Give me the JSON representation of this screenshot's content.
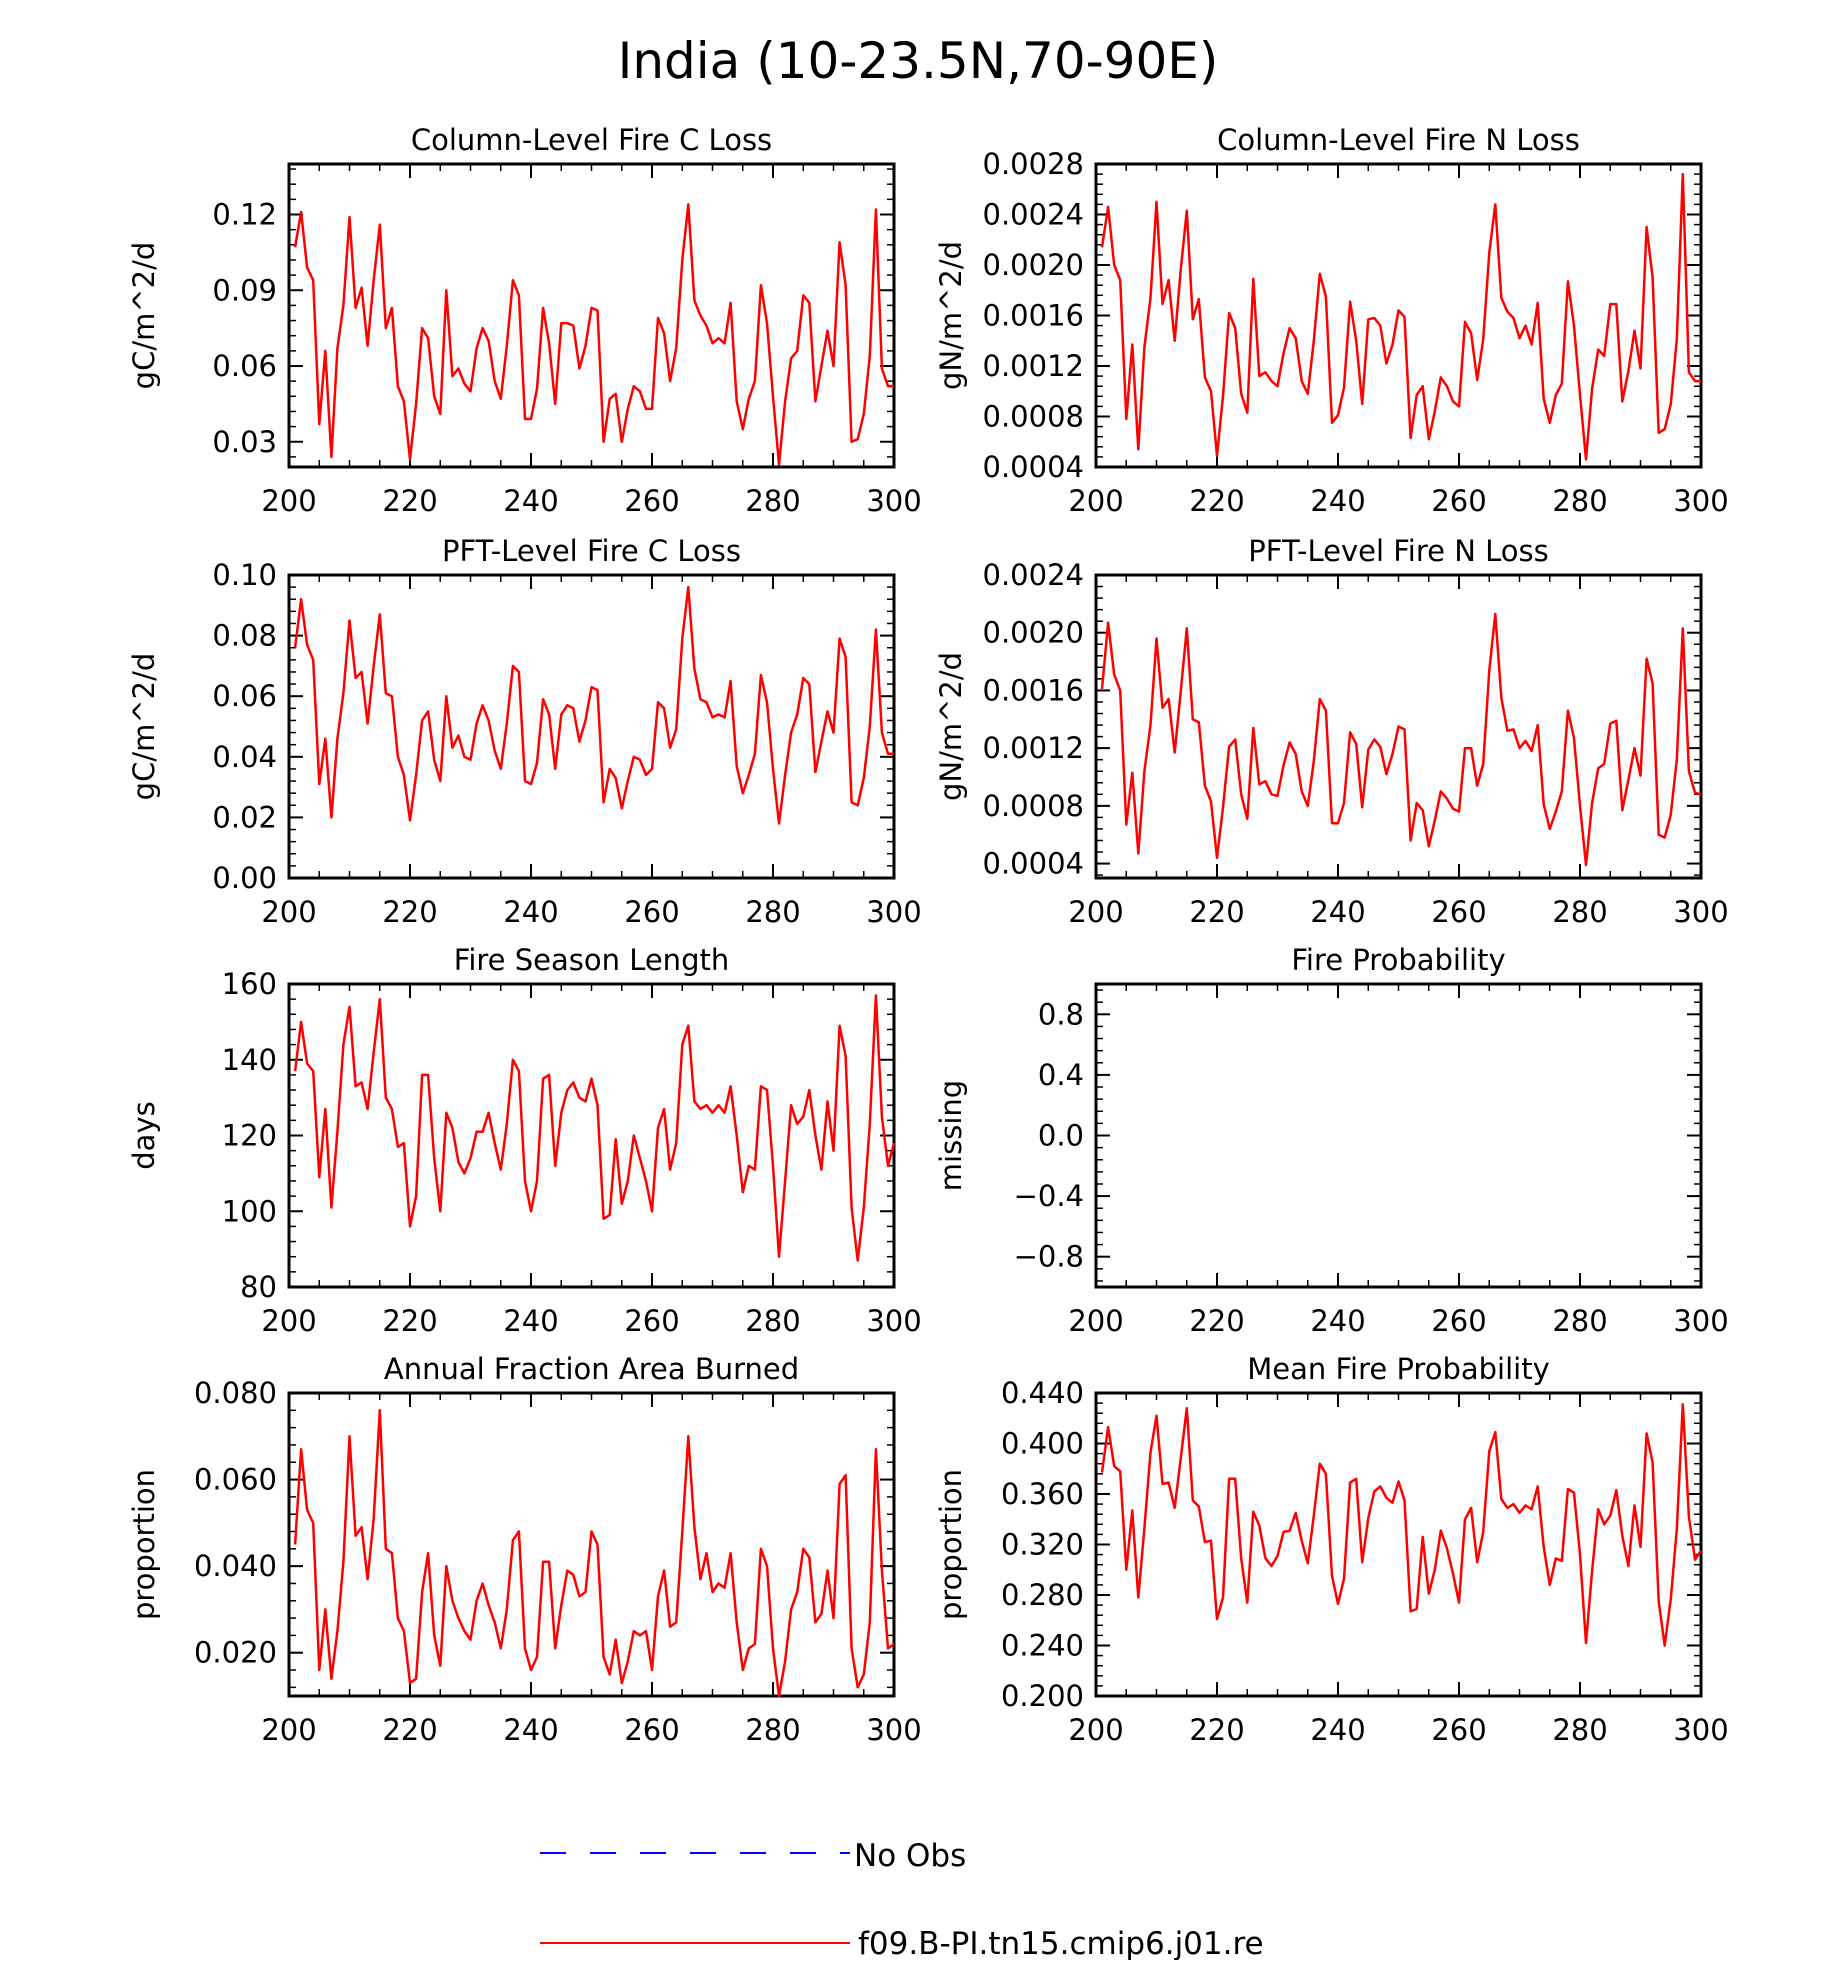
{
  "figure_title": "India (10-23.5N,70-90E)",
  "legend": [
    {
      "label": "No Obs",
      "color": "#0000ff",
      "style": "dashed"
    },
    {
      "label": "f09.B-PI.tn15.cmip6.j01.re",
      "color": "#ff0000",
      "style": "solid"
    }
  ],
  "chart_data": [
    {
      "type": "line",
      "title": "Column-Level Fire C Loss",
      "xlabel": "",
      "ylabel": "gC/m^2/d",
      "xlim": [
        200,
        300
      ],
      "ylim": [
        0.02,
        0.14
      ],
      "xticks": [
        200,
        220,
        240,
        260,
        280,
        300
      ],
      "yticks": [
        0.03,
        0.06,
        0.09,
        0.12
      ],
      "ytick_labels": [
        "0.03",
        "0.06",
        "0.09",
        "0.12"
      ],
      "x_start": 201,
      "series": [
        {
          "color": "#ff0000",
          "values": [
            0.107,
            0.121,
            0.099,
            0.094,
            0.037,
            0.066,
            0.024,
            0.067,
            0.084,
            0.119,
            0.083,
            0.091,
            0.068,
            0.094,
            0.116,
            0.075,
            0.083,
            0.052,
            0.046,
            0.023,
            0.045,
            0.075,
            0.071,
            0.048,
            0.041,
            0.09,
            0.056,
            0.059,
            0.053,
            0.05,
            0.067,
            0.075,
            0.07,
            0.054,
            0.047,
            0.068,
            0.094,
            0.088,
            0.039,
            0.039,
            0.051,
            0.083,
            0.069,
            0.045,
            0.077,
            0.077,
            0.076,
            0.059,
            0.068,
            0.083,
            0.082,
            0.03,
            0.047,
            0.049,
            0.03,
            0.043,
            0.052,
            0.05,
            0.043,
            0.043,
            0.079,
            0.073,
            0.054,
            0.067,
            0.102,
            0.124,
            0.086,
            0.08,
            0.076,
            0.069,
            0.071,
            0.069,
            0.085,
            0.046,
            0.035,
            0.047,
            0.054,
            0.092,
            0.077,
            0.048,
            0.021,
            0.046,
            0.063,
            0.066,
            0.088,
            0.085,
            0.046,
            0.06,
            0.074,
            0.06,
            0.109,
            0.092,
            0.03,
            0.031,
            0.041,
            0.064,
            0.122,
            0.059,
            0.052,
            0.052
          ]
        }
      ]
    },
    {
      "type": "line",
      "title": "Column-Level Fire N Loss",
      "xlabel": "",
      "ylabel": "gN/m^2/d",
      "xlim": [
        200,
        300
      ],
      "ylim": [
        0.0004,
        0.0028
      ],
      "xticks": [
        200,
        220,
        240,
        260,
        280,
        300
      ],
      "yticks": [
        0.0004,
        0.0008,
        0.0012,
        0.0016,
        0.002,
        0.0024,
        0.0028
      ],
      "ytick_labels": [
        "0.0004",
        "0.0008",
        "0.0012",
        "0.0016",
        "0.0020",
        "0.0024",
        "0.0028"
      ],
      "x_start": 201,
      "series": [
        {
          "color": "#ff0000",
          "values": [
            0.00214,
            0.00246,
            0.002,
            0.00188,
            0.00078,
            0.00137,
            0.00054,
            0.00135,
            0.00174,
            0.0025,
            0.00169,
            0.00188,
            0.0014,
            0.00196,
            0.00243,
            0.00157,
            0.00173,
            0.00111,
            0.001,
            0.00049,
            0.00096,
            0.00162,
            0.0015,
            0.00098,
            0.00083,
            0.00189,
            0.00112,
            0.00115,
            0.00108,
            0.00104,
            0.0013,
            0.0015,
            0.00142,
            0.00108,
            0.00098,
            0.0014,
            0.00193,
            0.00175,
            0.00075,
            0.00081,
            0.00103,
            0.00171,
            0.0014,
            0.0009,
            0.00157,
            0.00158,
            0.00152,
            0.00122,
            0.00137,
            0.00164,
            0.00159,
            0.00063,
            0.00097,
            0.00104,
            0.00062,
            0.00084,
            0.00111,
            0.00104,
            0.00092,
            0.00088,
            0.00155,
            0.00146,
            0.00109,
            0.00141,
            0.0021,
            0.00248,
            0.00174,
            0.00163,
            0.00158,
            0.00142,
            0.00152,
            0.00137,
            0.0017,
            0.00094,
            0.00075,
            0.00097,
            0.00106,
            0.00187,
            0.00152,
            0.00097,
            0.00046,
            0.00102,
            0.00133,
            0.00128,
            0.00169,
            0.00169,
            0.00092,
            0.00116,
            0.00148,
            0.00118,
            0.0023,
            0.0019,
            0.00067,
            0.0007,
            0.0009,
            0.00141,
            0.00272,
            0.00115,
            0.00108,
            0.00108
          ]
        }
      ]
    },
    {
      "type": "line",
      "title": "PFT-Level Fire C Loss",
      "xlabel": "",
      "ylabel": "gC/m^2/d",
      "xlim": [
        200,
        300
      ],
      "ylim": [
        0,
        0.1
      ],
      "xticks": [
        200,
        220,
        240,
        260,
        280,
        300
      ],
      "yticks": [
        0,
        0.02,
        0.04,
        0.06,
        0.08,
        0.1
      ],
      "ytick_labels": [
        "0.00",
        "0.02",
        "0.04",
        "0.06",
        "0.08",
        "0.10"
      ],
      "x_start": 201,
      "series": [
        {
          "color": "#ff0000",
          "values": [
            0.076,
            0.092,
            0.077,
            0.072,
            0.031,
            0.046,
            0.02,
            0.046,
            0.061,
            0.085,
            0.066,
            0.068,
            0.051,
            0.07,
            0.087,
            0.061,
            0.06,
            0.04,
            0.034,
            0.019,
            0.034,
            0.052,
            0.055,
            0.039,
            0.032,
            0.06,
            0.043,
            0.047,
            0.04,
            0.039,
            0.051,
            0.057,
            0.052,
            0.042,
            0.036,
            0.051,
            0.07,
            0.068,
            0.032,
            0.031,
            0.038,
            0.059,
            0.054,
            0.036,
            0.054,
            0.057,
            0.056,
            0.045,
            0.052,
            0.063,
            0.062,
            0.025,
            0.036,
            0.033,
            0.023,
            0.032,
            0.04,
            0.039,
            0.034,
            0.036,
            0.058,
            0.056,
            0.043,
            0.049,
            0.079,
            0.096,
            0.069,
            0.059,
            0.058,
            0.053,
            0.054,
            0.053,
            0.065,
            0.037,
            0.028,
            0.034,
            0.041,
            0.067,
            0.058,
            0.036,
            0.018,
            0.034,
            0.048,
            0.054,
            0.066,
            0.064,
            0.035,
            0.045,
            0.055,
            0.048,
            0.079,
            0.073,
            0.025,
            0.024,
            0.033,
            0.05,
            0.082,
            0.048,
            0.041,
            0.041
          ]
        }
      ]
    },
    {
      "type": "line",
      "title": "PFT-Level Fire N Loss",
      "xlabel": "",
      "ylabel": "gN/m^2/d",
      "xlim": [
        200,
        300
      ],
      "ylim": [
        0.0003,
        0.0024
      ],
      "xticks": [
        200,
        220,
        240,
        260,
        280,
        300
      ],
      "yticks": [
        0.0004,
        0.0008,
        0.0012,
        0.0016,
        0.002,
        0.0024
      ],
      "ytick_labels": [
        "0.0004",
        "0.0008",
        "0.0012",
        "0.0016",
        "0.0020",
        "0.0024"
      ],
      "x_start": 201,
      "series": [
        {
          "color": "#ff0000",
          "values": [
            0.00161,
            0.00207,
            0.00171,
            0.0016,
            0.00067,
            0.00103,
            0.00047,
            0.00104,
            0.00136,
            0.00196,
            0.00148,
            0.00154,
            0.00117,
            0.00159,
            0.00203,
            0.0014,
            0.00138,
            0.00094,
            0.00083,
            0.00044,
            0.00079,
            0.00121,
            0.00126,
            0.00088,
            0.00071,
            0.00134,
            0.00095,
            0.00097,
            0.00088,
            0.00087,
            0.00108,
            0.00124,
            0.00116,
            0.0009,
            0.0008,
            0.00111,
            0.00154,
            0.00146,
            0.00068,
            0.00068,
            0.00082,
            0.00131,
            0.00123,
            0.00079,
            0.00119,
            0.00126,
            0.00121,
            0.00102,
            0.00116,
            0.00135,
            0.00133,
            0.00056,
            0.00082,
            0.00077,
            0.00052,
            0.0007,
            0.0009,
            0.00085,
            0.00078,
            0.00076,
            0.0012,
            0.0012,
            0.00094,
            0.00109,
            0.00174,
            0.00213,
            0.00155,
            0.00132,
            0.00133,
            0.0012,
            0.00125,
            0.00118,
            0.00136,
            0.00081,
            0.00064,
            0.00076,
            0.0009,
            0.00146,
            0.00127,
            0.0008,
            0.00039,
            0.00082,
            0.00106,
            0.00109,
            0.00137,
            0.00139,
            0.00077,
            0.00098,
            0.0012,
            0.00101,
            0.00182,
            0.00165,
            0.0006,
            0.00058,
            0.00074,
            0.00112,
            0.00203,
            0.00104,
            0.00089,
            0.00088
          ]
        }
      ]
    },
    {
      "type": "line",
      "title": "Fire Season Length",
      "xlabel": "",
      "ylabel": "days",
      "xlim": [
        200,
        300
      ],
      "ylim": [
        80,
        160
      ],
      "xticks": [
        200,
        220,
        240,
        260,
        280,
        300
      ],
      "yticks": [
        80,
        100,
        120,
        140,
        160
      ],
      "ytick_labels": [
        "80",
        "100",
        "120",
        "140",
        "160"
      ],
      "x_start": 201,
      "series": [
        {
          "color": "#ff0000",
          "values": [
            137,
            150,
            139,
            137,
            109,
            127,
            101,
            121,
            144,
            154,
            133,
            134,
            127,
            142,
            156,
            130,
            127,
            117,
            118,
            96,
            104,
            136,
            136,
            114,
            100,
            126,
            122,
            113,
            110,
            114,
            121,
            121,
            126,
            118,
            111,
            123,
            140,
            137,
            108,
            100,
            108,
            135,
            136,
            112,
            126,
            132,
            134,
            130,
            129,
            135,
            128,
            98,
            99,
            119,
            102,
            108,
            120,
            114,
            108,
            100,
            122,
            127,
            111,
            118,
            144,
            149,
            129,
            127,
            128,
            126,
            128,
            126,
            133,
            120,
            105,
            112,
            111,
            133,
            132,
            112,
            88,
            108,
            128,
            123,
            125,
            132,
            120,
            111,
            129,
            116,
            149,
            141,
            101,
            87,
            101,
            123,
            157,
            125,
            112,
            118
          ]
        }
      ]
    },
    {
      "type": "line",
      "title": "Fire Probability",
      "xlabel": "",
      "ylabel": "missing",
      "xlim": [
        200,
        300
      ],
      "ylim": [
        -1,
        1
      ],
      "xticks": [
        200,
        220,
        240,
        260,
        280,
        300
      ],
      "yticks": [
        -0.8,
        -0.4,
        0,
        0.4,
        0.8
      ],
      "ytick_labels": [
        "−0.8",
        "−0.4",
        "0.0",
        "0.4",
        "0.8"
      ],
      "x_start": 201,
      "series": []
    },
    {
      "type": "line",
      "title": "Annual Fraction Area Burned",
      "xlabel": "",
      "ylabel": "proportion",
      "xlim": [
        200,
        300
      ],
      "ylim": [
        0.01,
        0.08
      ],
      "xticks": [
        200,
        220,
        240,
        260,
        280,
        300
      ],
      "yticks": [
        0.02,
        0.04,
        0.06,
        0.08
      ],
      "ytick_labels": [
        "0.020",
        "0.040",
        "0.060",
        "0.080"
      ],
      "x_start": 201,
      "series": [
        {
          "color": "#ff0000",
          "values": [
            0.045,
            0.067,
            0.053,
            0.05,
            0.016,
            0.03,
            0.014,
            0.025,
            0.041,
            0.07,
            0.047,
            0.049,
            0.037,
            0.051,
            0.076,
            0.044,
            0.043,
            0.028,
            0.025,
            0.013,
            0.014,
            0.034,
            0.043,
            0.024,
            0.017,
            0.04,
            0.032,
            0.028,
            0.025,
            0.023,
            0.032,
            0.036,
            0.031,
            0.027,
            0.021,
            0.03,
            0.046,
            0.048,
            0.021,
            0.016,
            0.019,
            0.041,
            0.041,
            0.021,
            0.031,
            0.039,
            0.038,
            0.033,
            0.034,
            0.048,
            0.045,
            0.019,
            0.015,
            0.023,
            0.013,
            0.018,
            0.025,
            0.024,
            0.025,
            0.016,
            0.033,
            0.039,
            0.026,
            0.027,
            0.048,
            0.07,
            0.049,
            0.037,
            0.043,
            0.034,
            0.036,
            0.035,
            0.043,
            0.027,
            0.016,
            0.021,
            0.022,
            0.044,
            0.04,
            0.021,
            0.01,
            0.018,
            0.03,
            0.034,
            0.044,
            0.042,
            0.027,
            0.029,
            0.039,
            0.028,
            0.059,
            0.061,
            0.021,
            0.012,
            0.015,
            0.027,
            0.067,
            0.039,
            0.021,
            0.022
          ]
        }
      ]
    },
    {
      "type": "line",
      "title": "Mean Fire Probability",
      "xlabel": "",
      "ylabel": "proportion",
      "xlim": [
        200,
        300
      ],
      "ylim": [
        0.2,
        0.44
      ],
      "xticks": [
        200,
        220,
        240,
        260,
        280,
        300
      ],
      "yticks": [
        0.2,
        0.24,
        0.28,
        0.32,
        0.36,
        0.4,
        0.44
      ],
      "ytick_labels": [
        "0.200",
        "0.240",
        "0.280",
        "0.320",
        "0.360",
        "0.400",
        "0.440"
      ],
      "x_start": 201,
      "series": [
        {
          "color": "#ff0000",
          "values": [
            0.377,
            0.413,
            0.382,
            0.378,
            0.3,
            0.347,
            0.278,
            0.333,
            0.393,
            0.422,
            0.368,
            0.369,
            0.349,
            0.388,
            0.428,
            0.355,
            0.35,
            0.322,
            0.323,
            0.261,
            0.278,
            0.372,
            0.372,
            0.309,
            0.274,
            0.346,
            0.335,
            0.309,
            0.303,
            0.311,
            0.33,
            0.331,
            0.345,
            0.323,
            0.305,
            0.343,
            0.384,
            0.376,
            0.295,
            0.273,
            0.293,
            0.369,
            0.372,
            0.306,
            0.341,
            0.362,
            0.366,
            0.357,
            0.353,
            0.37,
            0.355,
            0.267,
            0.269,
            0.326,
            0.281,
            0.3,
            0.331,
            0.317,
            0.297,
            0.274,
            0.34,
            0.349,
            0.306,
            0.33,
            0.394,
            0.409,
            0.356,
            0.349,
            0.352,
            0.345,
            0.351,
            0.348,
            0.366,
            0.318,
            0.288,
            0.309,
            0.307,
            0.364,
            0.361,
            0.312,
            0.242,
            0.299,
            0.348,
            0.336,
            0.343,
            0.363,
            0.327,
            0.303,
            0.351,
            0.318,
            0.408,
            0.385,
            0.275,
            0.24,
            0.277,
            0.332,
            0.431,
            0.342,
            0.308,
            0.315
          ]
        }
      ]
    }
  ]
}
